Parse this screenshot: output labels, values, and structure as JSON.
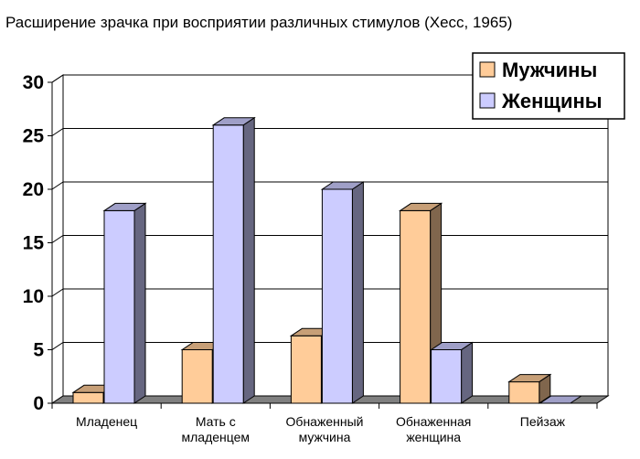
{
  "chart_data": {
    "type": "bar",
    "title": "Расширение зрачка при восприятии различных стимулов (Хесс, 1965)",
    "categories": [
      [
        "Младенец"
      ],
      [
        "Мать с",
        "младенцем"
      ],
      [
        "Обнаженный",
        "мужчина"
      ],
      [
        "Обнаженная",
        "женщина"
      ],
      [
        "Пейзаж"
      ]
    ],
    "series": [
      {
        "name": "Мужчины",
        "values": [
          1,
          5,
          6.3,
          18,
          2
        ],
        "color": "#FFCC99"
      },
      {
        "name": "Женщины",
        "values": [
          18,
          26,
          20,
          5,
          0
        ],
        "color": "#CCCCFF"
      }
    ],
    "yticks": [
      "0",
      "5",
      "10",
      "15",
      "20",
      "25",
      "30"
    ],
    "ylim": [
      0,
      30
    ],
    "grid": true,
    "legend": "top-right",
    "style": "3d-clustered-column"
  }
}
